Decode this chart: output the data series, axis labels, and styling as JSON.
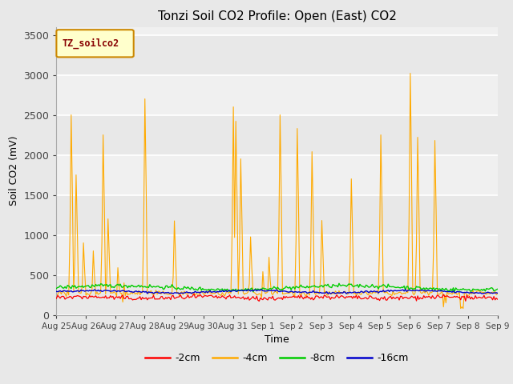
{
  "title": "Tonzi Soil CO2 Profile: Open (East) CO2",
  "xlabel": "Time",
  "ylabel": "Soil CO2 (mV)",
  "ylim": [
    0,
    3600
  ],
  "yticks": [
    0,
    500,
    1000,
    1500,
    2000,
    2500,
    3000,
    3500
  ],
  "legend_label": "TZ_soilco2",
  "series_labels": [
    "-2cm",
    "-4cm",
    "-8cm",
    "-16cm"
  ],
  "series_colors": [
    "#ff0000",
    "#ffaa00",
    "#00cc00",
    "#0000cc"
  ],
  "fig_bg_color": "#e8e8e8",
  "plot_bg_color": "#f0f0f0",
  "grid_color": "#ffffff",
  "date_labels": [
    "Aug 25",
    "Aug 26",
    "Aug 27",
    "Aug 28",
    "Aug 29",
    "Aug 30",
    "Aug 31",
    "Sep 1",
    "Sep 2",
    "Sep 3",
    "Sep 4",
    "Sep 5",
    "Sep 6",
    "Sep 7",
    "Sep 8",
    "Sep 9"
  ],
  "date_ticks": [
    0,
    24,
    48,
    72,
    96,
    120,
    144,
    168,
    192,
    216,
    240,
    264,
    288,
    312,
    336,
    360
  ],
  "n_hours": 384,
  "spike_times_orange": [
    12,
    16,
    22,
    30,
    38,
    42,
    50,
    55,
    72,
    96,
    144,
    146,
    150,
    158,
    168,
    173,
    182,
    196,
    208,
    216,
    240,
    264,
    288,
    294,
    308,
    316,
    330
  ],
  "spike_heights_orange": [
    2500,
    1750,
    900,
    800,
    2250,
    1200,
    590,
    400,
    2700,
    1175,
    2600,
    2420,
    1950,
    975,
    540,
    720,
    2500,
    2330,
    2040,
    1180,
    1700,
    2250,
    3020,
    2220,
    2180,
    250,
    100
  ],
  "orange_base": 270,
  "green_base": 340,
  "red_base": 215,
  "blue_base": 290,
  "seed": 42
}
